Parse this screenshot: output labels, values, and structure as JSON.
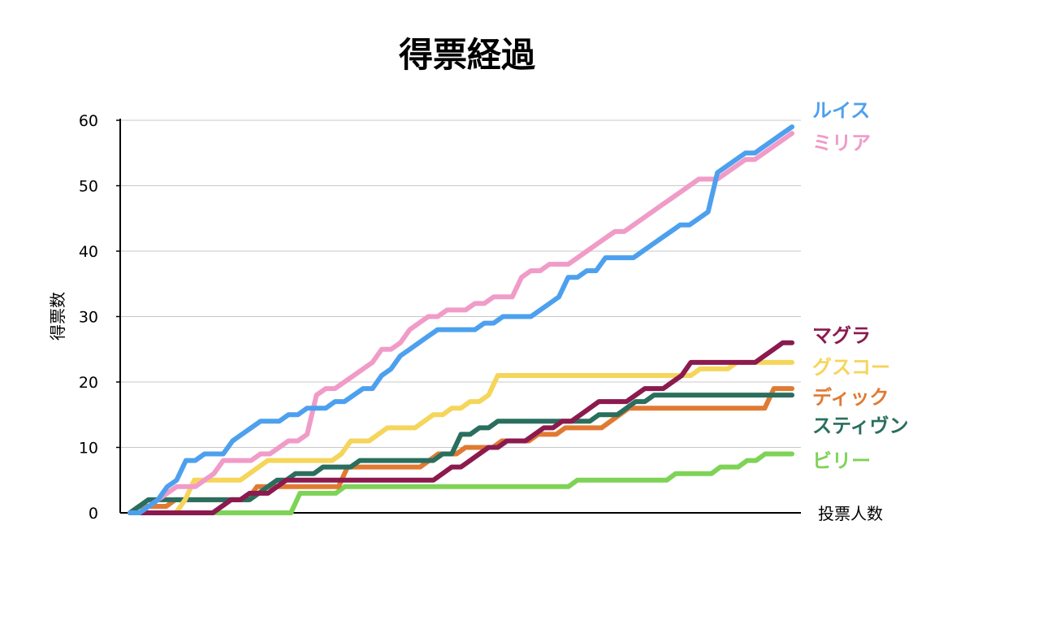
{
  "chart_data": {
    "type": "line",
    "title": "得票経過",
    "ylabel": "得票数",
    "xlabel": "投票人数",
    "ylim": [
      0,
      60
    ],
    "yticks": [
      0,
      10,
      20,
      30,
      40,
      50,
      60
    ],
    "grid": true,
    "legend": "right, labels at line ends",
    "series": [
      {
        "name": "ルイス",
        "color": "#4DA0EE",
        "values": [
          0,
          0,
          1,
          2,
          4,
          5,
          8,
          8,
          9,
          9,
          9,
          11,
          12,
          13,
          14,
          14,
          14,
          15,
          15,
          16,
          16,
          16,
          17,
          17,
          18,
          19,
          19,
          21,
          22,
          24,
          25,
          26,
          27,
          28,
          28,
          28,
          28,
          28,
          29,
          29,
          30,
          30,
          30,
          30,
          31,
          32,
          33,
          36,
          36,
          37,
          37,
          39,
          39,
          39,
          39,
          40,
          41,
          42,
          43,
          44,
          44,
          45,
          46,
          52,
          53,
          54,
          55,
          55,
          56,
          57,
          58,
          59
        ]
      },
      {
        "name": "ミリア",
        "color": "#F09BC8",
        "values": [
          0,
          0,
          1,
          2,
          3,
          4,
          4,
          4,
          5,
          6,
          8,
          8,
          8,
          8,
          9,
          9,
          10,
          11,
          11,
          12,
          18,
          19,
          19,
          20,
          21,
          22,
          23,
          25,
          25,
          26,
          28,
          29,
          30,
          30,
          31,
          31,
          31,
          32,
          32,
          33,
          33,
          33,
          36,
          37,
          37,
          38,
          38,
          38,
          39,
          40,
          41,
          42,
          43,
          43,
          44,
          45,
          46,
          47,
          48,
          49,
          50,
          51,
          51,
          51,
          52,
          53,
          54,
          54,
          55,
          56,
          57,
          58
        ]
      },
      {
        "name": "マグラ",
        "color": "#8B1A4E",
        "values": [
          0,
          0,
          0,
          0,
          0,
          0,
          0,
          0,
          0,
          0,
          1,
          2,
          2,
          3,
          3,
          3,
          4,
          5,
          5,
          5,
          5,
          5,
          5,
          5,
          5,
          5,
          5,
          5,
          5,
          5,
          5,
          5,
          5,
          5,
          6,
          7,
          7,
          8,
          9,
          10,
          10,
          11,
          11,
          11,
          12,
          13,
          13,
          14,
          14,
          15,
          16,
          17,
          17,
          17,
          17,
          18,
          19,
          19,
          19,
          20,
          21,
          23,
          23,
          23,
          23,
          23,
          23,
          23,
          23,
          24,
          25,
          26,
          26
        ]
      },
      {
        "name": "グスコー",
        "color": "#F5D55A",
        "values": [
          0,
          0,
          0,
          0,
          0,
          0,
          2,
          5,
          5,
          5,
          5,
          5,
          5,
          6,
          7,
          8,
          8,
          8,
          8,
          8,
          8,
          8,
          8,
          9,
          11,
          11,
          11,
          12,
          13,
          13,
          13,
          13,
          14,
          15,
          15,
          16,
          16,
          17,
          17,
          18,
          21,
          21,
          21,
          21,
          21,
          21,
          21,
          21,
          21,
          21,
          21,
          21,
          21,
          21,
          21,
          21,
          21,
          21,
          21,
          21,
          21,
          21,
          22,
          22,
          22,
          22,
          23,
          23,
          23,
          23,
          23,
          23,
          23
        ]
      },
      {
        "name": "ディック",
        "color": "#E07A33",
        "values": [
          0,
          1,
          1,
          1,
          1,
          2,
          2,
          2,
          2,
          2,
          2,
          2,
          2,
          2,
          4,
          4,
          4,
          4,
          4,
          4,
          4,
          4,
          4,
          4,
          7,
          7,
          7,
          7,
          7,
          7,
          7,
          7,
          7,
          8,
          9,
          9,
          9,
          10,
          10,
          10,
          10,
          11,
          11,
          11,
          11,
          12,
          12,
          12,
          13,
          13,
          13,
          13,
          13,
          14,
          15,
          16,
          16,
          16,
          16,
          16,
          16,
          16,
          16,
          16,
          16,
          16,
          16,
          16,
          16,
          16,
          16,
          19,
          19,
          19
        ]
      },
      {
        "name": "スティヴン",
        "color": "#2A6E5E",
        "values": [
          0,
          1,
          2,
          2,
          2,
          2,
          2,
          2,
          2,
          2,
          2,
          2,
          2,
          2,
          3,
          4,
          5,
          5,
          6,
          6,
          6,
          7,
          7,
          7,
          7,
          8,
          8,
          8,
          8,
          8,
          8,
          8,
          8,
          8,
          9,
          9,
          12,
          12,
          13,
          13,
          14,
          14,
          14,
          14,
          14,
          14,
          14,
          14,
          14,
          14,
          14,
          15,
          15,
          15,
          16,
          17,
          17,
          18,
          18,
          18,
          18,
          18,
          18,
          18,
          18,
          18,
          18,
          18,
          18,
          18,
          18,
          18,
          18
        ]
      },
      {
        "name": "ビリー",
        "color": "#7ED357",
        "values": [
          0,
          0,
          0,
          0,
          0,
          0,
          0,
          0,
          0,
          0,
          0,
          0,
          0,
          0,
          0,
          0,
          0,
          0,
          0,
          3,
          3,
          3,
          3,
          3,
          4,
          4,
          4,
          4,
          4,
          4,
          4,
          4,
          4,
          4,
          4,
          4,
          4,
          4,
          4,
          4,
          4,
          4,
          4,
          4,
          4,
          4,
          4,
          4,
          4,
          4,
          5,
          5,
          5,
          5,
          5,
          5,
          5,
          5,
          5,
          5,
          5,
          6,
          6,
          6,
          6,
          6,
          7,
          7,
          7,
          8,
          8,
          9,
          9,
          9,
          9
        ]
      }
    ]
  }
}
